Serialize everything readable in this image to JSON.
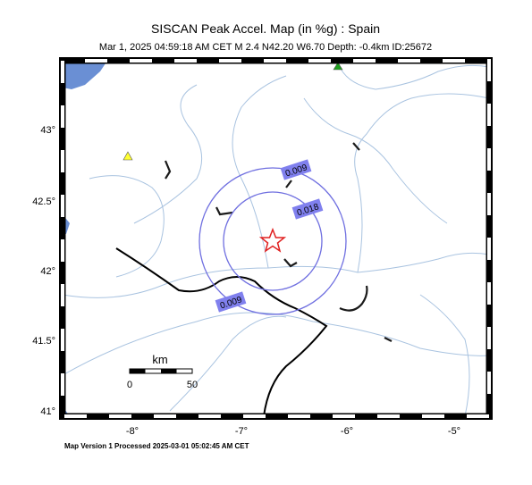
{
  "header": {
    "title": "SISCAN Peak Accel. Map (in %g) : Spain",
    "subtitle": "Mar  1, 2025 04:59:18 AM CET   M 2.4   N42.20 W6.70   Depth: -0.4km   ID:25672"
  },
  "lat_labels": [
    "43°",
    "42.5°",
    "42°",
    "41.5°",
    "41°"
  ],
  "lon_labels": [
    "-8°",
    "-7°",
    "-6°",
    "-5°"
  ],
  "contours": [
    "0.009",
    "0.018",
    "0.009"
  ],
  "scale": {
    "unit": "km",
    "start": "0",
    "end": "50"
  },
  "footer": "Map Version 1 Processed 2025-03-01 05:02:45 AM CET"
}
